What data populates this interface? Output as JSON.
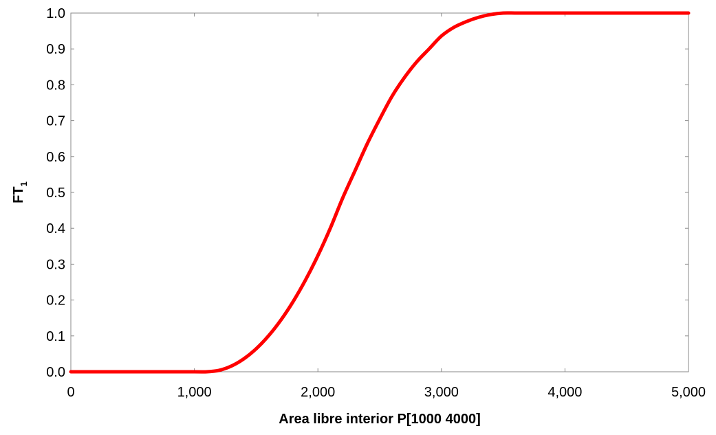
{
  "chart_data": {
    "type": "line",
    "xlabel": "Area libre interior P[1000 4000]",
    "ylabel": "FT",
    "ylabel_subscript": "1",
    "xlim": [
      0,
      5000
    ],
    "ylim": [
      0,
      1.0
    ],
    "x_ticks": [
      0,
      1000,
      2000,
      3000,
      4000,
      5000
    ],
    "x_tick_labels": [
      "0",
      "1,000",
      "2,000",
      "3,000",
      "4,000",
      "5,000"
    ],
    "y_ticks": [
      0.0,
      0.1,
      0.2,
      0.3,
      0.4,
      0.5,
      0.6,
      0.7,
      0.8,
      0.9,
      1.0
    ],
    "y_tick_labels": [
      "0.0",
      "0.1",
      "0.2",
      "0.3",
      "0.4",
      "0.5",
      "0.6",
      "0.7",
      "0.8",
      "0.9",
      "1.0"
    ],
    "grid": false,
    "series": [
      {
        "color": "#ff0000",
        "x": [
          0,
          500,
          1000,
          1100,
          1200,
          1300,
          1400,
          1500,
          1600,
          1700,
          1800,
          1900,
          2000,
          2100,
          2200,
          2300,
          2400,
          2500,
          2600,
          2700,
          2800,
          2900,
          3000,
          3100,
          3200,
          3300,
          3400,
          3500,
          3600,
          3700,
          3800,
          3900,
          4000,
          4500,
          5000
        ],
        "y": [
          0,
          0,
          0,
          0,
          0.004,
          0.016,
          0.036,
          0.064,
          0.1,
          0.144,
          0.196,
          0.256,
          0.324,
          0.4,
          0.484,
          0.56,
          0.636,
          0.704,
          0.768,
          0.82,
          0.864,
          0.9,
          0.936,
          0.96,
          0.976,
          0.988,
          0.996,
          1.0,
          1.0,
          1.0,
          1.0,
          1.0,
          1.0,
          1.0,
          1.0
        ]
      }
    ]
  }
}
